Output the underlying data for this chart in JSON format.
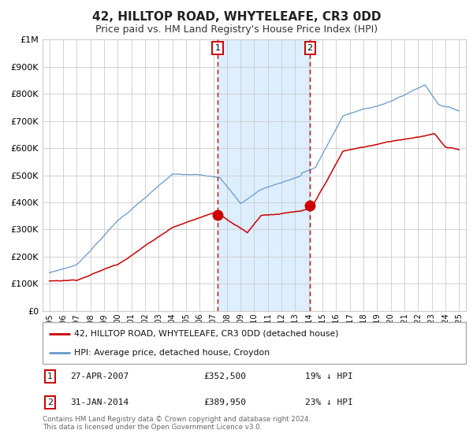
{
  "title": "42, HILLTOP ROAD, WHYTELEAFE, CR3 0DD",
  "subtitle": "Price paid vs. HM Land Registry's House Price Index (HPI)",
  "red_label": "42, HILLTOP ROAD, WHYTELEAFE, CR3 0DD (detached house)",
  "blue_label": "HPI: Average price, detached house, Croydon",
  "annotation1": {
    "label": "1",
    "date_idx": 2007.32,
    "price": 352500,
    "text1": "27-APR-2007",
    "text2": "£352,500",
    "text3": "19% ↓ HPI"
  },
  "annotation2": {
    "label": "2",
    "date_idx": 2014.08,
    "price": 389950,
    "text1": "31-JAN-2014",
    "text2": "£389,950",
    "text3": "23% ↓ HPI"
  },
  "ylim": [
    0,
    1000000
  ],
  "xlim": [
    1994.5,
    2025.5
  ],
  "yticks": [
    0,
    100000,
    200000,
    300000,
    400000,
    500000,
    600000,
    700000,
    800000,
    900000,
    1000000
  ],
  "ylabels": [
    "£0",
    "£100K",
    "£200K",
    "£300K",
    "£400K",
    "£500K",
    "£600K",
    "£700K",
    "£800K",
    "£900K",
    "£1M"
  ],
  "xticks": [
    1995,
    1996,
    1997,
    1998,
    1999,
    2000,
    2001,
    2002,
    2003,
    2004,
    2005,
    2006,
    2007,
    2008,
    2009,
    2010,
    2011,
    2012,
    2013,
    2014,
    2015,
    2016,
    2017,
    2018,
    2019,
    2020,
    2021,
    2022,
    2023,
    2024,
    2025
  ],
  "footer": "Contains HM Land Registry data © Crown copyright and database right 2024.\nThis data is licensed under the Open Government Licence v3.0.",
  "red_color": "#cc0000",
  "blue_color": "#6699cc",
  "shade_color": "#ddeeff",
  "grid_color": "#cccccc",
  "background_color": "#ffffff",
  "title_fontsize": 11,
  "subtitle_fontsize": 9
}
